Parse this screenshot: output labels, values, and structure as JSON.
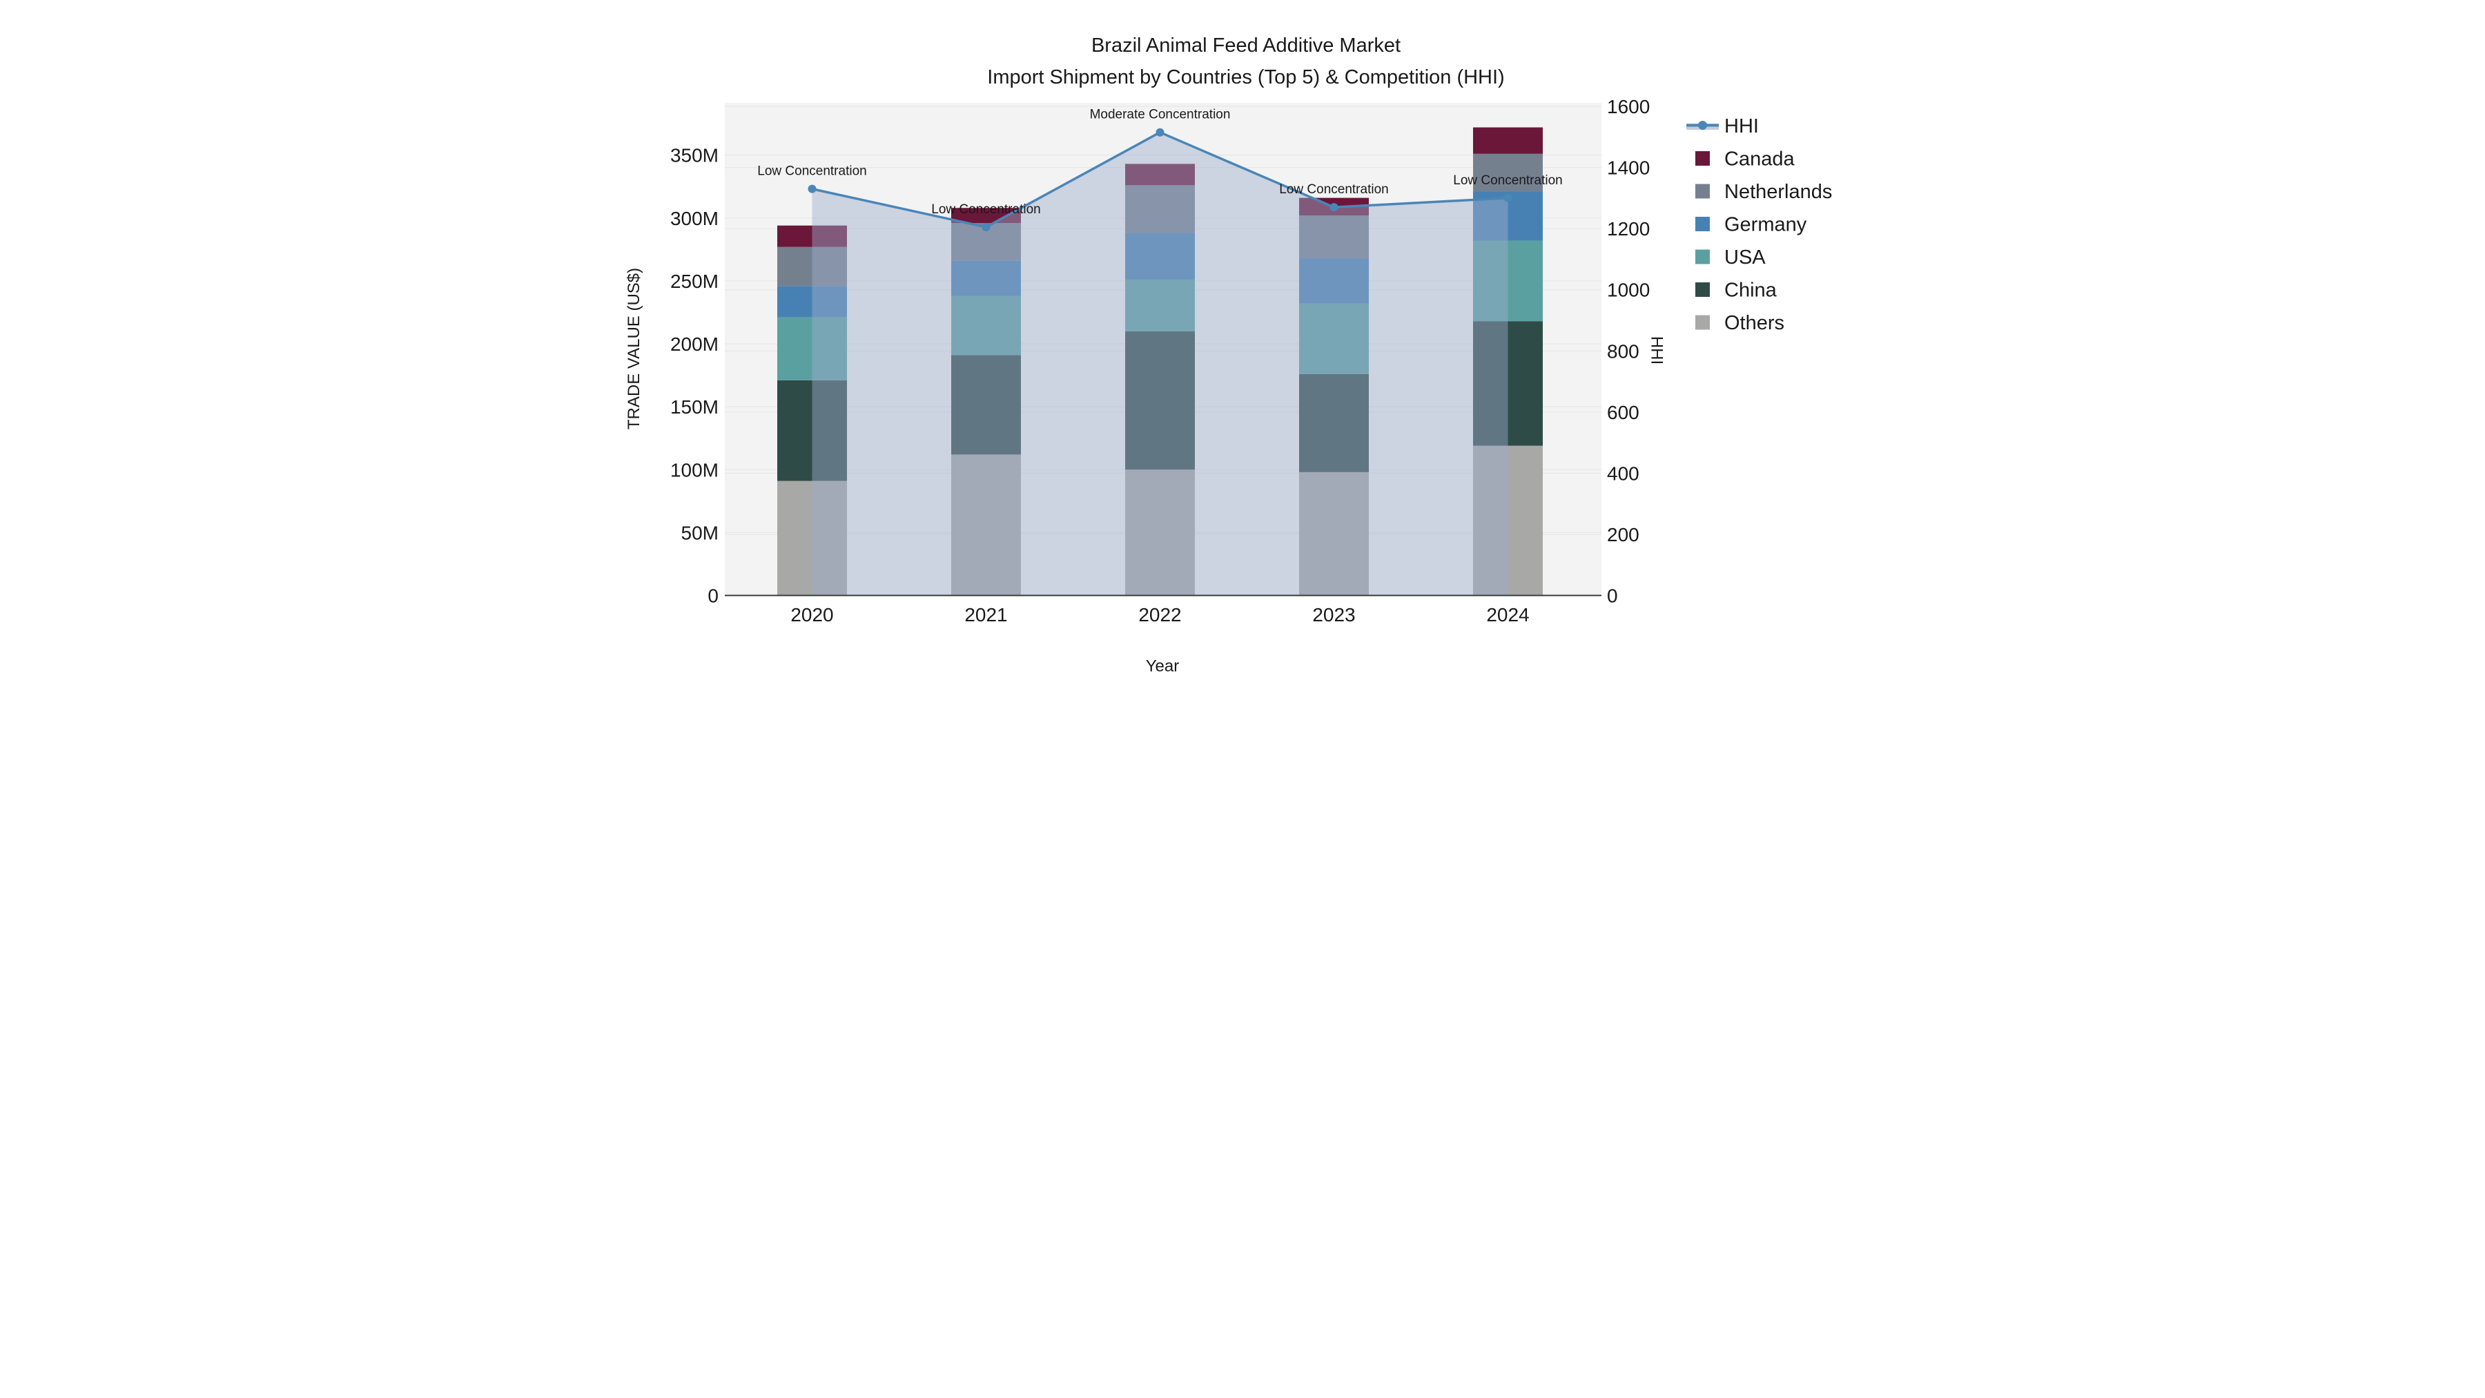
{
  "title": {
    "line1": "Brazil Animal Feed Additive Market",
    "line2": "Import Shipment by Countries (Top 5) & Competition (HHI)"
  },
  "axes": {
    "xlabel": "Year",
    "ylabel_left": "TRADE VALUE (US$)",
    "ylabel_right": "HHI",
    "left_ticks": [
      "0",
      "50M",
      "100M",
      "150M",
      "200M",
      "250M",
      "300M",
      "350M"
    ],
    "right_ticks": [
      "0",
      "200",
      "400",
      "600",
      "800",
      "1000",
      "1200",
      "1400",
      "1600"
    ],
    "x_ticks": [
      "2020",
      "2021",
      "2022",
      "2023",
      "2024"
    ]
  },
  "legend": {
    "items": [
      {
        "label": "HHI",
        "type": "line",
        "color_key": "hhi_line"
      },
      {
        "label": "Canada",
        "type": "swatch",
        "color_key": "Canada"
      },
      {
        "label": "Netherlands",
        "type": "swatch",
        "color_key": "Netherlands"
      },
      {
        "label": "Germany",
        "type": "swatch",
        "color_key": "Germany"
      },
      {
        "label": "USA",
        "type": "swatch",
        "color_key": "USA"
      },
      {
        "label": "China",
        "type": "swatch",
        "color_key": "China"
      },
      {
        "label": "Others",
        "type": "swatch",
        "color_key": "Others"
      }
    ]
  },
  "colors": {
    "hhi_line": "#4a86b8",
    "hhi_area": "rgba(158,174,204,0.45)",
    "hhi_legend_band": "#c6cdd9",
    "Canada": "#6a173a",
    "Netherlands": "#75808f",
    "Germany": "#4781b3",
    "USA": "#5ba0a1",
    "China": "#2e4b48",
    "Others": "#a8a8a6",
    "plot_bg": "#f3f3f3",
    "grid": "#e4e4e6",
    "axis_line": "#3a3a3a"
  },
  "chart_data": {
    "type": "bar",
    "subtype": "stacked bars with HHI line on secondary axis",
    "categories": [
      "2020",
      "2021",
      "2022",
      "2023",
      "2024"
    ],
    "value_unit": "US$ millions (left axis), HHI index (right axis)",
    "stack_order_bottom_to_top": [
      "Others",
      "China",
      "USA",
      "Germany",
      "Netherlands",
      "Canada"
    ],
    "series": [
      {
        "name": "Canada",
        "values": [
          17,
          12,
          17,
          14,
          21
        ]
      },
      {
        "name": "Netherlands",
        "values": [
          31,
          30,
          38,
          34,
          30
        ]
      },
      {
        "name": "Germany",
        "values": [
          25,
          28,
          37,
          36,
          39
        ]
      },
      {
        "name": "USA",
        "values": [
          50,
          47,
          41,
          56,
          64
        ]
      },
      {
        "name": "China",
        "values": [
          80,
          79,
          110,
          78,
          99
        ]
      },
      {
        "name": "Others",
        "values": [
          91,
          112,
          100,
          98,
          119
        ]
      }
    ],
    "bar_totals_M": [
      294,
      308,
      343,
      316,
      372
    ],
    "line_series": {
      "name": "HHI",
      "axis": "right",
      "values": [
        1330,
        1205,
        1515,
        1270,
        1300
      ]
    },
    "annotations": [
      "Low Concentration",
      "Low Concentration",
      "Moderate Concentration",
      "Low Concentration",
      "Low Concentration"
    ],
    "ylim_left": [
      0,
      390
    ],
    "ylim_right": [
      0,
      1600
    ],
    "grid": true,
    "legend_position": "right outside"
  }
}
